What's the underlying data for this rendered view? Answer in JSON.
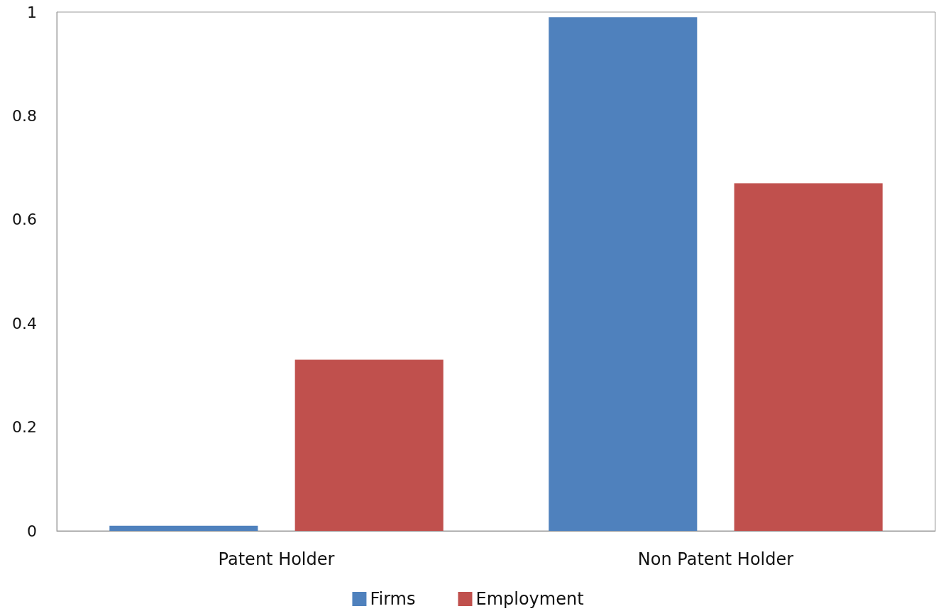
{
  "chart_data": {
    "type": "bar",
    "categories": [
      "Patent Holder",
      "Non Patent Holder"
    ],
    "series": [
      {
        "name": "Firms",
        "color": "#4f81bd",
        "values": [
          0.01,
          0.99
        ]
      },
      {
        "name": "Employment",
        "color": "#c0504d",
        "values": [
          0.33,
          0.67
        ]
      }
    ],
    "ylim": [
      0,
      1
    ],
    "yticks": [
      0,
      0.2,
      0.4,
      0.6,
      0.8,
      1
    ],
    "grid": false,
    "legend": "bottom"
  }
}
